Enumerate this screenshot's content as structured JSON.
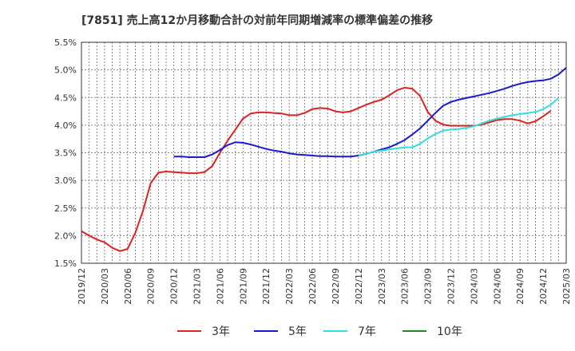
{
  "chart_data": {
    "type": "line",
    "title": "[7851]  売上高12か月移動合計の対前年同期増減率の標準偏差の推移",
    "ylim": [
      1.5,
      5.5
    ],
    "y_ticks": [
      "1.5%",
      "2.0%",
      "2.5%",
      "3.0%",
      "3.5%",
      "4.0%",
      "4.5%",
      "5.0%",
      "5.5%"
    ],
    "y_tick_values": [
      1.5,
      2.0,
      2.5,
      3.0,
      3.5,
      4.0,
      4.5,
      5.0,
      5.5
    ],
    "x_ticks": [
      "2019/12",
      "2020/03",
      "2020/06",
      "2020/09",
      "2020/12",
      "2021/03",
      "2021/06",
      "2021/09",
      "2021/12",
      "2022/03",
      "2022/06",
      "2022/09",
      "2022/12",
      "2023/03",
      "2023/06",
      "2023/09",
      "2023/12",
      "2024/03",
      "2024/06",
      "2024/09",
      "2024/12",
      "2025/03"
    ],
    "series": [
      {
        "name": "3年",
        "color": "#dd2222",
        "start_month_index": 0,
        "values": [
          2.08,
          2.0,
          1.93,
          1.88,
          1.78,
          1.72,
          1.76,
          2.05,
          2.45,
          2.95,
          3.14,
          3.16,
          3.15,
          3.14,
          3.13,
          3.13,
          3.15,
          3.26,
          3.5,
          3.72,
          3.92,
          4.12,
          4.21,
          4.23,
          4.23,
          4.22,
          4.21,
          4.18,
          4.18,
          4.22,
          4.29,
          4.31,
          4.3,
          4.25,
          4.23,
          4.25,
          4.31,
          4.37,
          4.42,
          4.46,
          4.54,
          4.63,
          4.68,
          4.66,
          4.53,
          4.24,
          4.08,
          4.01,
          3.99,
          3.99,
          3.99,
          3.99,
          4.01,
          4.05,
          4.09,
          4.11,
          4.11,
          4.08,
          4.03,
          4.07,
          4.16,
          4.26
        ]
      },
      {
        "name": "5年",
        "color": "#1a1acc",
        "start_month_index": 12,
        "values": [
          3.43,
          3.43,
          3.42,
          3.42,
          3.42,
          3.47,
          3.55,
          3.64,
          3.69,
          3.68,
          3.65,
          3.61,
          3.57,
          3.54,
          3.52,
          3.49,
          3.47,
          3.46,
          3.45,
          3.44,
          3.44,
          3.43,
          3.43,
          3.43,
          3.45,
          3.48,
          3.52,
          3.56,
          3.6,
          3.66,
          3.73,
          3.83,
          3.94,
          4.08,
          4.22,
          4.35,
          4.42,
          4.46,
          4.49,
          4.52,
          4.55,
          4.58,
          4.62,
          4.66,
          4.71,
          4.75,
          4.78,
          4.8,
          4.81,
          4.84,
          4.92,
          5.04
        ]
      },
      {
        "name": "7年",
        "color": "#33dddd",
        "start_month_index": 36,
        "values": [
          3.45,
          3.48,
          3.52,
          3.54,
          3.56,
          3.58,
          3.6,
          3.6,
          3.66,
          3.76,
          3.84,
          3.9,
          3.92,
          3.93,
          3.95,
          3.98,
          4.03,
          4.08,
          4.12,
          4.15,
          4.18,
          4.2,
          4.22,
          4.24,
          4.29,
          4.37,
          4.49
        ]
      },
      {
        "name": "10年",
        "color": "#228822",
        "start_month_index": 0,
        "values": []
      }
    ]
  }
}
